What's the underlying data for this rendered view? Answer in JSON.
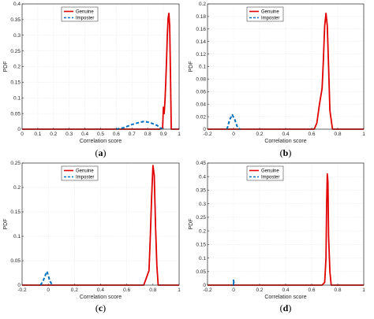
{
  "colors": {
    "genuine": "#e00000",
    "imposter": "#0070c0",
    "axis": "#262626",
    "grid": "#dcdcdc"
  },
  "chart_data": [
    {
      "type": "line",
      "panel_label": "a",
      "xlabel": "Correlation score",
      "ylabel": "PDF",
      "xlim": [
        0,
        1
      ],
      "ylim": [
        0,
        0.4
      ],
      "xticks": [
        "0",
        "0.1",
        "0.2",
        "0.3",
        "0.4",
        "0.5",
        "0.6",
        "0.7",
        "0.8",
        "0.9",
        "1"
      ],
      "yticks": [
        "0",
        "0.05",
        "0.1",
        "0.15",
        "0.2",
        "0.25",
        "0.3",
        "0.35",
        "0.4"
      ],
      "grid": true,
      "legend": "top-left",
      "series": [
        {
          "name": "Genuine",
          "style": "solid",
          "x": [
            0,
            0.88,
            0.895,
            0.9,
            0.905,
            0.91,
            0.915,
            0.92,
            0.925,
            0.93,
            0.935,
            0.94,
            0.945,
            0.95,
            1
          ],
          "y": [
            0,
            0,
            0.005,
            0.07,
            0.05,
            0.09,
            0.15,
            0.22,
            0.3,
            0.355,
            0.37,
            0.33,
            0.18,
            0,
            0
          ]
        },
        {
          "name": "Imposter",
          "style": "dashed",
          "x": [
            0.6,
            0.65,
            0.7,
            0.75,
            0.78,
            0.82,
            0.86,
            0.88,
            0.9
          ],
          "y": [
            0,
            0.005,
            0.015,
            0.022,
            0.025,
            0.02,
            0.012,
            0.004,
            0
          ]
        }
      ]
    },
    {
      "type": "line",
      "panel_label": "b",
      "xlabel": "Correlation score",
      "ylabel": "PDF",
      "xlim": [
        -0.2,
        1
      ],
      "ylim": [
        0,
        0.2
      ],
      "xticks": [
        "-0.2",
        "0",
        "0.2",
        "0.4",
        "0.6",
        "0.8",
        "1"
      ],
      "yticks": [
        "0",
        "0.02",
        "0.04",
        "0.06",
        "0.08",
        "0.1",
        "0.12",
        "0.14",
        "0.16",
        "0.18",
        "0.2"
      ],
      "grid": true,
      "legend": "top-left",
      "series": [
        {
          "name": "Genuine",
          "style": "solid",
          "x": [
            -0.2,
            0.62,
            0.64,
            0.66,
            0.68,
            0.69,
            0.7,
            0.71,
            0.72,
            0.73,
            0.74,
            0.76,
            1
          ],
          "y": [
            0,
            0,
            0.01,
            0.04,
            0.065,
            0.11,
            0.165,
            0.185,
            0.165,
            0.1,
            0.03,
            0,
            0
          ]
        },
        {
          "name": "Imposter",
          "style": "dashed",
          "x": [
            -0.05,
            -0.03,
            -0.01,
            0.01,
            0.03,
            0.05
          ],
          "y": [
            0,
            0.015,
            0.023,
            0.015,
            0.003,
            0
          ]
        }
      ]
    },
    {
      "type": "line",
      "panel_label": "c",
      "xlabel": "Correlation score",
      "ylabel": "PDF",
      "xlim": [
        -0.2,
        1
      ],
      "ylim": [
        0,
        0.25
      ],
      "xticks": [
        "-0.2",
        "0",
        "0.2",
        "0.4",
        "0.6",
        "0.8",
        "1"
      ],
      "yticks": [
        "0",
        "0.05",
        "0.1",
        "0.15",
        "0.2",
        "0.25"
      ],
      "grid": true,
      "legend": "top-left",
      "series": [
        {
          "name": "Genuine",
          "style": "solid",
          "x": [
            -0.2,
            0.73,
            0.75,
            0.77,
            0.78,
            0.79,
            0.8,
            0.81,
            0.82,
            0.83,
            0.84,
            1
          ],
          "y": [
            0,
            0,
            0.015,
            0.03,
            0.1,
            0.18,
            0.245,
            0.225,
            0.12,
            0.04,
            0,
            0
          ]
        },
        {
          "name": "Imposter",
          "style": "dashed",
          "x": [
            -0.06,
            -0.04,
            -0.02,
            -0.01,
            0,
            0.01,
            0.03
          ],
          "y": [
            0,
            0.008,
            0.022,
            0.028,
            0.02,
            0.01,
            0
          ]
        }
      ]
    },
    {
      "type": "line",
      "panel_label": "d",
      "xlabel": "Correlation score",
      "ylabel": "PDF",
      "xlim": [
        -0.2,
        1
      ],
      "ylim": [
        0,
        0.45
      ],
      "xticks": [
        "-0.2",
        "0",
        "0.2",
        "0.4",
        "0.6",
        "0.8",
        "1"
      ],
      "yticks": [
        "0",
        "0.05",
        "0.1",
        "0.15",
        "0.2",
        "0.25",
        "0.3",
        "0.35",
        "0.4",
        "0.45"
      ],
      "grid": true,
      "legend": "top-left",
      "series": [
        {
          "name": "Genuine",
          "style": "solid",
          "x": [
            -0.2,
            0.68,
            0.7,
            0.71,
            0.715,
            0.72,
            0.725,
            0.73,
            0.74,
            0.75,
            1
          ],
          "y": [
            0,
            0,
            0.01,
            0.1,
            0.3,
            0.41,
            0.38,
            0.18,
            0.05,
            0,
            0
          ]
        },
        {
          "name": "Imposter",
          "style": "dashed",
          "x": [
            -0.005,
            0,
            0,
            0.005
          ],
          "y": [
            0,
            0,
            0.018,
            0
          ]
        }
      ]
    }
  ]
}
